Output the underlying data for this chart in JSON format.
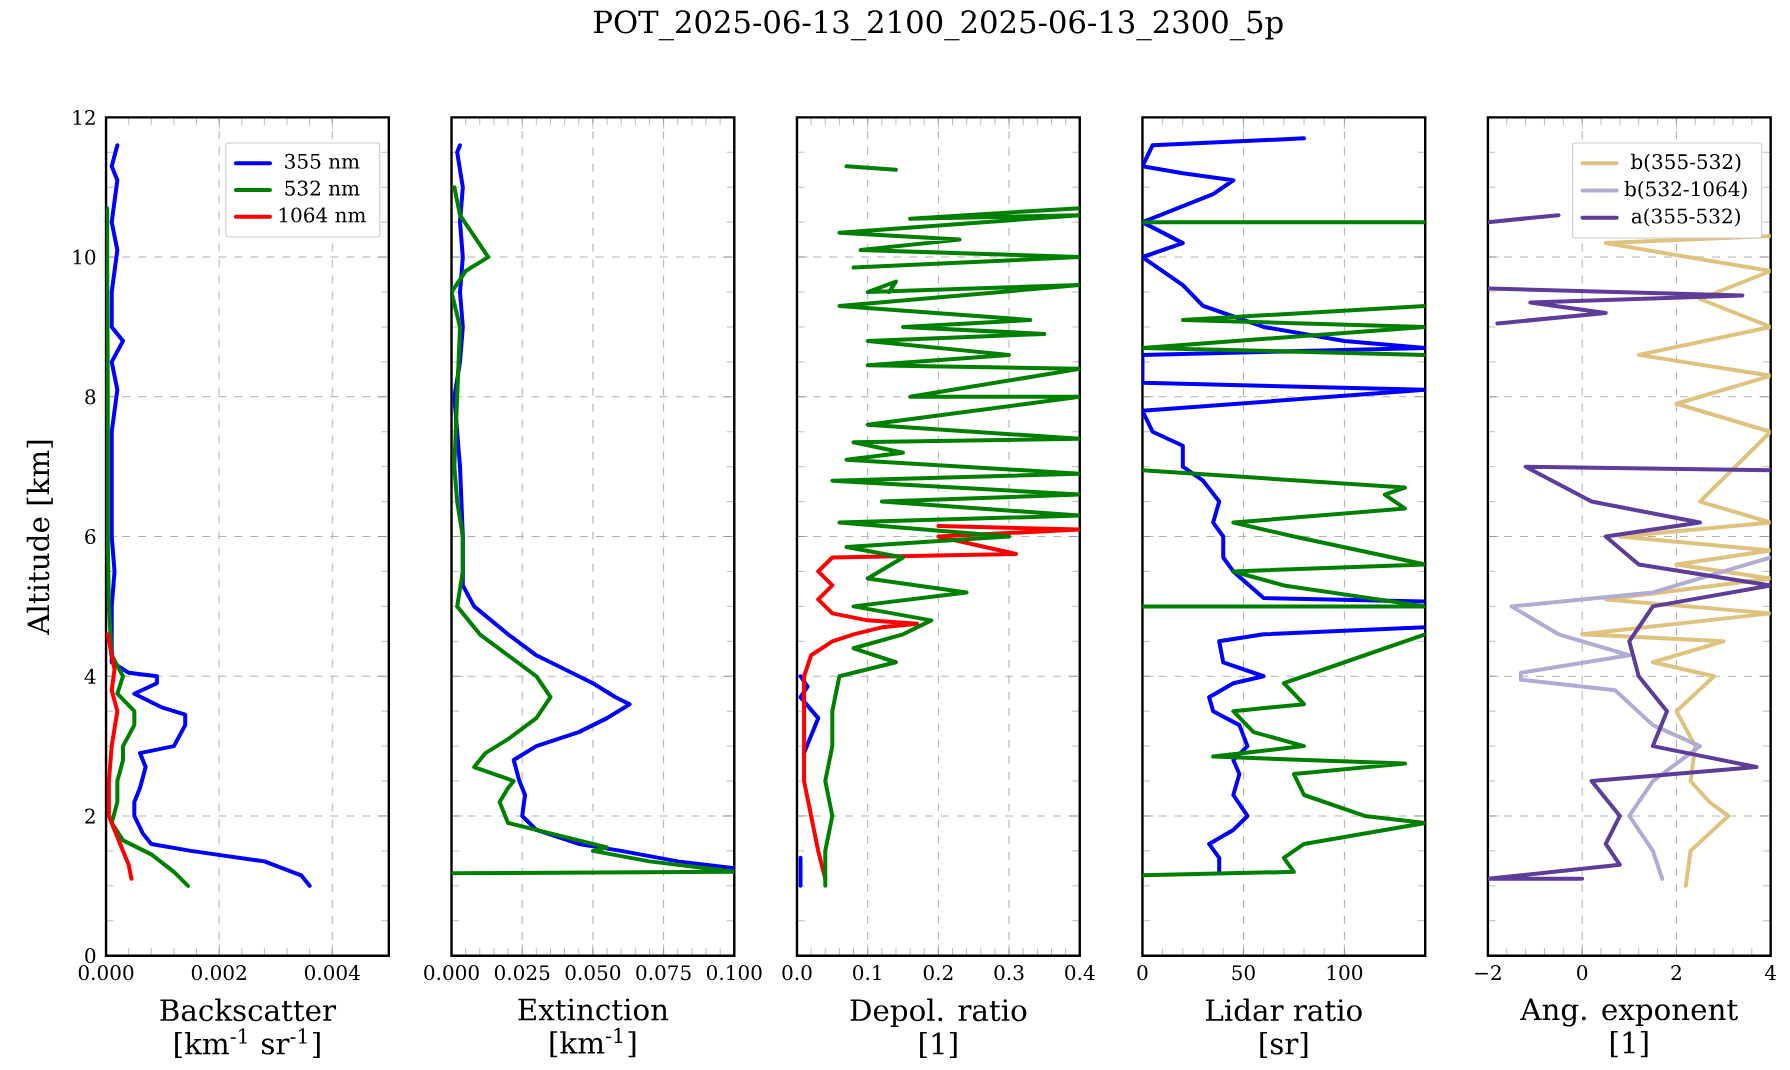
{
  "chart_data": [
    {
      "type": "line",
      "xlabel": "Backscatter\n[km$^{-1}$ sr$^{-1}$]",
      "ylabel": "Altitude [km]",
      "xlim": [
        0,
        0.005
      ],
      "ylim": [
        0,
        12
      ],
      "xticks": [
        {
          "value": 0,
          "label": "0.000"
        },
        {
          "value": 0.002,
          "label": "0.002"
        },
        {
          "value": 0.004,
          "label": "0.004"
        }
      ],
      "yticks": [
        0,
        2,
        4,
        6,
        8,
        10,
        12
      ],
      "grid": true,
      "legend": "top right",
      "series": [
        {
          "name": "355 nm",
          "color": "#0000ff",
          "x": [
            0.0036,
            0.00345,
            0.0028,
            0.0015,
            0.0008,
            0.00065,
            0.0005,
            0.0005,
            0.0006,
            0.0007,
            0.0006,
            0.0012,
            0.0014,
            0.0014,
            0.001,
            0.0005,
            0.0009,
            0.0009,
            0.0004,
            0.0001,
            0.0001,
            0.00015,
            0.0001,
            0.0001,
            0.0002,
            0.0001,
            0.0003,
            0.0001,
            0.0001,
            0.0002,
            0.0001,
            0.0002,
            0.0001,
            0.0002
          ],
          "values": [
            1.0,
            1.15,
            1.35,
            1.5,
            1.6,
            1.75,
            2.0,
            2.2,
            2.4,
            2.7,
            2.9,
            3.0,
            3.3,
            3.45,
            3.55,
            3.75,
            3.9,
            4.0,
            4.05,
            4.2,
            5.0,
            5.5,
            6.0,
            7.5,
            8.1,
            8.5,
            8.8,
            9.0,
            9.5,
            10.1,
            10.5,
            11.1,
            11.3,
            11.6
          ]
        },
        {
          "name": "532 nm",
          "color": "#008000",
          "x": [
            0.00145,
            0.0012,
            0.0008,
            0.0003,
            0.0001,
            0.0002,
            0.0002,
            0.0003,
            0.0003,
            0.0005,
            0.0005,
            0.0002,
            0.0003,
            0.0001,
            5e-05,
            3e-05,
            3e-05,
            2e-05,
            2e-05
          ],
          "values": [
            1.0,
            1.2,
            1.45,
            1.65,
            1.9,
            2.2,
            2.5,
            2.8,
            3.0,
            3.3,
            3.5,
            3.75,
            4.0,
            4.3,
            5.0,
            6.0,
            8.0,
            10.0,
            10.7
          ]
        },
        {
          "name": "1064 nm",
          "color": "#ff0000",
          "x": [
            0.00045,
            0.0004,
            0.0002,
            5e-05,
            5e-05,
            0.0001,
            0.0002,
            0.0001,
            0.00015,
            0.0001,
            3e-05
          ],
          "values": [
            1.1,
            1.3,
            1.7,
            2.0,
            2.5,
            3.0,
            3.5,
            3.8,
            4.1,
            4.3,
            4.6
          ]
        }
      ]
    },
    {
      "type": "line",
      "xlabel": "Extinction\n[km$^{-1}$]",
      "xlim": [
        0,
        0.1
      ],
      "ylim": [
        0,
        12
      ],
      "xticks": [
        {
          "value": 0,
          "label": "0.000"
        },
        {
          "value": 0.025,
          "label": "0.025"
        },
        {
          "value": 0.05,
          "label": "0.050"
        },
        {
          "value": 0.075,
          "label": "0.075"
        },
        {
          "value": 0.1,
          "label": "0.100"
        }
      ],
      "yticks": [
        0,
        2,
        4,
        6,
        8,
        10,
        12
      ],
      "grid": true,
      "tick_labels": "x",
      "series": [
        {
          "color": "#0000ff",
          "x": [
            0.1,
            0.08,
            0.06,
            0.045,
            0.03,
            0.025,
            0.026,
            0.024,
            0.022,
            0.03,
            0.045,
            0.055,
            0.063,
            0.058,
            0.05,
            0.04,
            0.03,
            0.02,
            0.008,
            0.004,
            0.004,
            0.003,
            0.001,
            0.003,
            0.004,
            0.003,
            0.004,
            0.003,
            0.004,
            0.002,
            0.003
          ],
          "values": [
            1.25,
            1.35,
            1.5,
            1.6,
            1.8,
            2.0,
            2.3,
            2.5,
            2.8,
            3.0,
            3.2,
            3.4,
            3.6,
            3.7,
            3.9,
            4.1,
            4.3,
            4.6,
            5.0,
            5.3,
            6.0,
            7.0,
            8.0,
            8.5,
            9.0,
            9.5,
            10.0,
            10.5,
            11.0,
            11.5,
            11.6
          ]
        },
        {
          "color": "#008000",
          "x": [
            0,
            0.1,
            0.09,
            0.07,
            0.05,
            0.055,
            0.04,
            0.02,
            0.017,
            0.02,
            0.022,
            0.008,
            0.012,
            0.02,
            0.03,
            0.035,
            0.03,
            0.02,
            0.01,
            0.002,
            0.004,
            0.004,
            0.002,
            0.001,
            0.003,
            0.0,
            0.005,
            0.013,
            0.008,
            0.003,
            0.001
          ],
          "values": [
            1.18,
            1.2,
            1.25,
            1.35,
            1.5,
            1.55,
            1.7,
            1.9,
            2.2,
            2.4,
            2.5,
            2.7,
            2.9,
            3.1,
            3.4,
            3.7,
            4.0,
            4.3,
            4.6,
            5.0,
            5.5,
            6.0,
            6.5,
            7.0,
            9.0,
            9.5,
            9.8,
            10.0,
            10.3,
            10.6,
            11.0
          ]
        }
      ]
    },
    {
      "type": "line",
      "title": "POT_2025-06-13_2100_2025-06-13_2300_5p",
      "xlabel": "Depol. ratio\n[1]",
      "xlim": [
        0,
        0.4
      ],
      "ylim": [
        0,
        12
      ],
      "xticks": [
        {
          "value": 0,
          "label": "0.0"
        },
        {
          "value": 0.1,
          "label": "0.1"
        },
        {
          "value": 0.2,
          "label": "0.2"
        },
        {
          "value": 0.3,
          "label": "0.3"
        },
        {
          "value": 0.4,
          "label": "0.4"
        }
      ],
      "yticks": [
        0,
        2,
        4,
        6,
        8,
        10,
        12
      ],
      "grid": true,
      "tick_labels": "x",
      "series": [
        {
          "color": "#0000ff",
          "x": [
            0.005,
            0.005,
            null,
            0.01,
            0.03,
            0.005,
            0.015,
            0.005
          ],
          "values": [
            1.0,
            1.4,
            null,
            2.9,
            3.4,
            3.7,
            3.85,
            4.0
          ]
        },
        {
          "color": "#ff0000",
          "x": [
            0.04,
            0.03,
            0.02,
            0.01,
            0.01,
            0.02,
            0.05,
            0.08,
            0.12,
            0.17,
            0.1,
            0.05,
            0.03,
            0.05,
            0.03,
            0.05,
            0.31,
            0.2,
            0.4,
            0.2
          ],
          "values": [
            1.1,
            1.5,
            2.0,
            2.5,
            4.0,
            4.3,
            4.5,
            4.6,
            4.7,
            4.75,
            4.8,
            4.9,
            5.1,
            5.3,
            5.5,
            5.7,
            5.75,
            6.0,
            6.1,
            6.15
          ]
        },
        {
          "color": "#008000",
          "x": [
            0.04,
            0.04,
            0.05,
            0.04,
            0.05,
            0.05,
            0.06,
            0.14,
            0.08,
            0.15,
            0.19,
            0.08,
            0.24,
            0.1,
            0.15,
            0.07,
            0.3,
            0.06,
            0.4,
            0.12,
            0.4,
            0.05,
            0.4,
            0.07,
            0.15,
            0.08,
            0.4,
            0.1,
            0.4,
            0.16,
            0.4,
            0.1,
            0.3,
            0.1,
            0.35,
            0.15,
            0.33,
            0.06,
            0.4,
            0.1,
            0.14,
            0.13,
            null,
            0.08,
            0.4,
            0.09,
            0.23,
            0.06,
            0.4,
            0.16,
            0.4,
            null,
            0.07,
            0.14
          ],
          "values": [
            1.0,
            1.5,
            2.0,
            2.5,
            3.0,
            3.5,
            4.0,
            4.2,
            4.4,
            4.6,
            4.8,
            5.0,
            5.2,
            5.4,
            5.7,
            5.85,
            6.0,
            6.2,
            6.3,
            6.5,
            6.6,
            6.8,
            6.9,
            7.1,
            7.2,
            7.35,
            7.4,
            7.6,
            8.0,
            8.0,
            8.4,
            8.45,
            8.6,
            8.8,
            8.9,
            9.0,
            9.1,
            9.3,
            9.6,
            9.5,
            9.65,
            9.5,
            null,
            9.85,
            10.0,
            10.1,
            10.25,
            10.35,
            10.6,
            10.55,
            10.7,
            null,
            11.3,
            11.25
          ]
        }
      ]
    },
    {
      "type": "line",
      "xlabel": "Lidar ratio\n[sr]",
      "xlim": [
        0,
        140
      ],
      "ylim": [
        0,
        12
      ],
      "xticks": [
        0,
        50,
        100
      ],
      "yticks": [
        0,
        2,
        4,
        6,
        8,
        10,
        12
      ],
      "grid": true,
      "tick_labels": "x",
      "series": [
        {
          "color": "#0000ff",
          "x": [
            38,
            38,
            33,
            45,
            52,
            45,
            48,
            45,
            52,
            48,
            35,
            33,
            45,
            60,
            40,
            38,
            60,
            140,
            null,
            140,
            60,
            45,
            40,
            40,
            35,
            38,
            30,
            20,
            20,
            5,
            0,
            140,
            0,
            0,
            140,
            100,
            60,
            30,
            20,
            0,
            20,
            0,
            35,
            45,
            20,
            0,
            5,
            80
          ],
          "values": [
            1.2,
            1.4,
            1.6,
            1.8,
            2.0,
            2.3,
            2.6,
            2.8,
            3.0,
            3.3,
            3.5,
            3.7,
            3.9,
            4.0,
            4.2,
            4.5,
            4.6,
            4.7,
            null,
            5.07,
            5.12,
            5.5,
            5.7,
            6.0,
            6.2,
            6.5,
            6.8,
            7.0,
            7.3,
            7.5,
            7.8,
            8.1,
            8.2,
            8.6,
            8.7,
            8.8,
            9.0,
            9.3,
            9.6,
            10.0,
            10.2,
            10.5,
            10.9,
            11.1,
            11.2,
            11.3,
            11.6,
            11.7
          ]
        },
        {
          "color": "#008000",
          "x": [
            0,
            75,
            70,
            80,
            140,
            110,
            80,
            75,
            130,
            35,
            80,
            55,
            45,
            80,
            70,
            80,
            140,
            null,
            0,
            140,
            70,
            45,
            140,
            75,
            45,
            130,
            120,
            130,
            0,
            null,
            140,
            0,
            140,
            20,
            140,
            null,
            0,
            140
          ],
          "values": [
            1.15,
            1.2,
            1.4,
            1.6,
            1.9,
            2.0,
            2.3,
            2.6,
            2.75,
            2.85,
            3.0,
            3.2,
            3.5,
            3.6,
            3.9,
            4.0,
            4.6,
            null,
            5.0,
            5.0,
            5.3,
            5.5,
            5.6,
            6.0,
            6.2,
            6.4,
            6.6,
            6.7,
            6.95,
            null,
            8.6,
            8.7,
            9.0,
            9.1,
            9.3,
            null,
            10.5,
            10.5
          ]
        }
      ]
    },
    {
      "type": "line",
      "xlabel": "Ang. exponent\n[1]",
      "xlim": [
        -2,
        4
      ],
      "ylim": [
        0,
        12
      ],
      "xticks": [
        {
          "value": -2,
          "label": "−2"
        },
        0,
        2,
        4
      ],
      "yticks": [
        0,
        2,
        4,
        6,
        8,
        10,
        12
      ],
      "grid": true,
      "tick_labels": "x",
      "legend": "top right",
      "series": [
        {
          "name": "b(355-532)",
          "color": "#dfc27d",
          "x": [
            2.2,
            2.3,
            3.1,
            2.7,
            2.3,
            2.4,
            2.0,
            2.8,
            1.5,
            3.0,
            0.0,
            4,
            0.5,
            4,
            2,
            4,
            0.8,
            4,
            2.5,
            4,
            2,
            4,
            1.2,
            4,
            2.5,
            4,
            0.5,
            4
          ],
          "values": [
            1.0,
            1.5,
            2.0,
            2.2,
            2.5,
            3.0,
            3.5,
            4.0,
            4.2,
            4.5,
            4.6,
            4.9,
            5.1,
            5.4,
            5.6,
            5.8,
            6.0,
            6.2,
            6.5,
            7.5,
            7.9,
            8.3,
            8.6,
            9.0,
            9.4,
            9.8,
            10.2,
            10.3
          ]
        },
        {
          "name": "b(532-1064)",
          "color": "#b2abd2",
          "x": [
            1.7,
            1.5,
            1.0,
            1.5,
            2.5,
            1.5,
            0.7,
            -1.3,
            -1.3,
            1.0,
            -0.5,
            -1.5,
            1.5,
            3,
            4
          ],
          "values": [
            1.1,
            1.5,
            2.0,
            2.5,
            3.0,
            3.3,
            3.8,
            3.95,
            4.05,
            4.3,
            4.6,
            5.0,
            5.2,
            5.5,
            5.7
          ]
        },
        {
          "name": "a(355-532)",
          "color": "#5e3c99",
          "x": [
            0,
            -2,
            0.8,
            0.5,
            0.8,
            0.2,
            3.7,
            1.5,
            1.8,
            1.2,
            1.0,
            1.5,
            4,
            1.2,
            0.5,
            2.5,
            0.2,
            -1.2,
            4,
            null,
            -1.8,
            0.5,
            -1.1,
            3.4,
            -2,
            null,
            -2,
            -0.5,
            null
          ],
          "values": [
            1.1,
            1.1,
            1.3,
            1.6,
            2.0,
            2.5,
            2.7,
            3.0,
            3.5,
            4.0,
            4.5,
            5.0,
            5.3,
            5.6,
            6.0,
            6.2,
            6.5,
            7.0,
            6.95,
            null,
            9.05,
            9.2,
            9.35,
            9.45,
            9.55,
            null,
            10.5,
            10.6,
            null
          ]
        }
      ]
    }
  ]
}
